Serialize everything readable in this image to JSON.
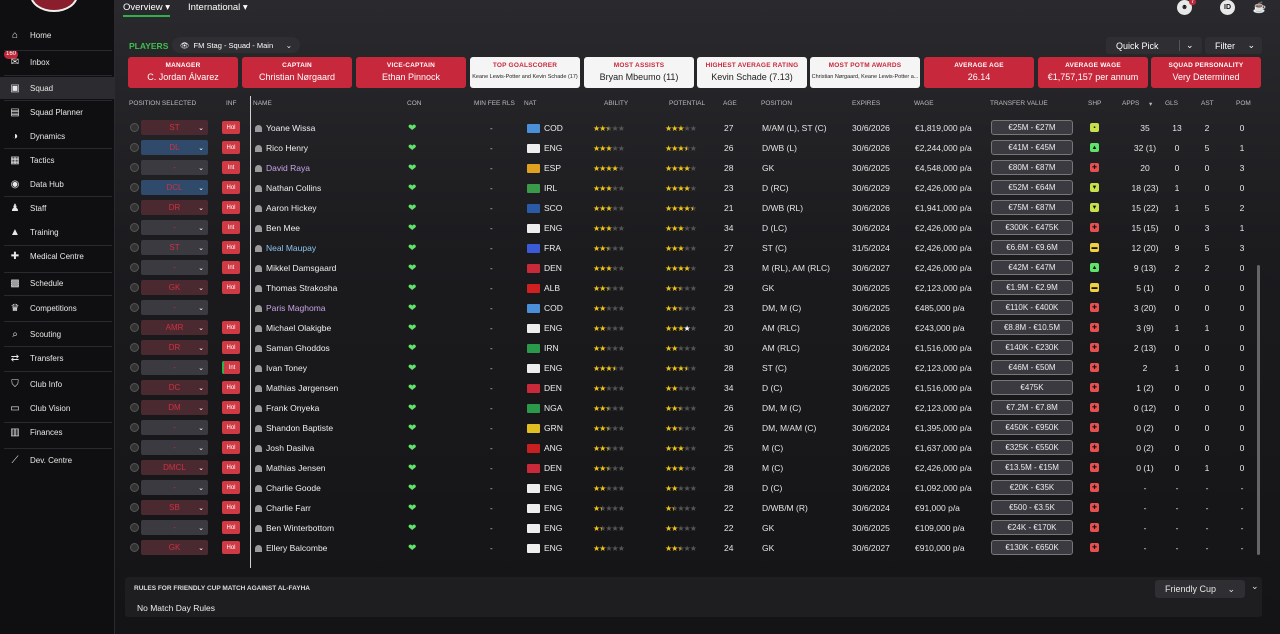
{
  "sidebar": {
    "inbox_badge": "160",
    "items": [
      {
        "label": "Home",
        "icon": "home-icon",
        "glyph": "⌂"
      },
      {
        "label": "Inbox",
        "icon": "inbox-icon",
        "glyph": "✉"
      },
      {
        "label": "Squad",
        "icon": "squad-icon",
        "glyph": "▣"
      },
      {
        "label": "Squad Planner",
        "icon": "squad-planner-icon",
        "glyph": "▤"
      },
      {
        "label": "Dynamics",
        "icon": "dynamics-icon",
        "glyph": "◑"
      },
      {
        "label": "Tactics",
        "icon": "tactics-icon",
        "glyph": "▦"
      },
      {
        "label": "Data Hub",
        "icon": "data-hub-icon",
        "glyph": "◉"
      },
      {
        "label": "Staff",
        "icon": "staff-icon",
        "glyph": "♟"
      },
      {
        "label": "Training",
        "icon": "training-icon",
        "glyph": "▲"
      },
      {
        "label": "Medical Centre",
        "icon": "medical-centre-icon",
        "glyph": "✚"
      },
      {
        "label": "Schedule",
        "icon": "schedule-icon",
        "glyph": "▩"
      },
      {
        "label": "Competitions",
        "icon": "competitions-icon",
        "glyph": "♛"
      },
      {
        "label": "Scouting",
        "icon": "scouting-icon",
        "glyph": "⌕"
      },
      {
        "label": "Transfers",
        "icon": "transfers-icon",
        "glyph": "⇄"
      },
      {
        "label": "Club Info",
        "icon": "club-info-icon",
        "glyph": "⛉"
      },
      {
        "label": "Club Vision",
        "icon": "club-vision-icon",
        "glyph": "▭"
      },
      {
        "label": "Finances",
        "icon": "finances-icon",
        "glyph": "▥"
      },
      {
        "label": "Dev. Centre",
        "icon": "dev-centre-icon",
        "glyph": "⟋"
      }
    ]
  },
  "topbar": {
    "tabs": [
      "Overview",
      "International"
    ],
    "notification_count": "7",
    "id_label": "ID"
  },
  "header": {
    "players_label": "PLAYERS",
    "view_select": "FM Stag - Squad - Main",
    "quick_pick": "Quick Pick",
    "filter": "Filter"
  },
  "cards": [
    {
      "title": "MANAGER",
      "value": "C. Jordan Álvarez",
      "style": "red"
    },
    {
      "title": "CAPTAIN",
      "value": "Christian Nørgaard",
      "style": "red"
    },
    {
      "title": "VICE-CAPTAIN",
      "value": "Ethan Pinnock",
      "style": "red"
    },
    {
      "title": "TOP GOALSCORER",
      "value": "Keane Lewis-Potter and Kevin Schade (17)",
      "style": "white",
      "small": true
    },
    {
      "title": "MOST ASSISTS",
      "value": "Bryan Mbeumo (11)",
      "style": "white"
    },
    {
      "title": "HIGHEST AVERAGE RATING",
      "value": "Kevin Schade (7.13)",
      "style": "white"
    },
    {
      "title": "MOST POTM AWARDS",
      "value": "Christian Nørgaard, Keane Lewis-Potter a...",
      "style": "white",
      "small": true
    },
    {
      "title": "AVERAGE AGE",
      "value": "26.14",
      "style": "red"
    },
    {
      "title": "AVERAGE WAGE",
      "value": "€1,757,157 per annum",
      "style": "red"
    },
    {
      "title": "SQUAD PERSONALITY",
      "value": "Very Determined",
      "style": "red"
    }
  ],
  "columns": [
    "POSITION SELECTED",
    "INF",
    "NAME",
    "CON",
    "MIN FEE RLS",
    "NAT",
    "ABILITY",
    "POTENTIAL",
    "AGE",
    "POSITION",
    "EXPIRES",
    "WAGE",
    "TRANSFER VALUE",
    "SHP",
    "APPS",
    "GLS",
    "AST",
    "POM"
  ],
  "players": [
    {
      "sel": "ST",
      "selStyle": "red",
      "inf": "Hol",
      "name": "Yoane Wissa",
      "nameStyle": "",
      "minfee": "-",
      "nat": "COD",
      "flag": "#4a8fd8",
      "ab": 2.5,
      "pot": 3,
      "age": "27",
      "pos": "M/AM (L), ST (C)",
      "exp": "30/6/2026",
      "wage": "€1,819,000 p/a",
      "tv": "€25M - €27M",
      "shp": "#c8e04a",
      "shpG": "▪",
      "apps": "35",
      "gls": "13",
      "ast": "2",
      "pom": "0"
    },
    {
      "sel": "DL",
      "selStyle": "blue",
      "inf": "Hol",
      "name": "Rico Henry",
      "nameStyle": "",
      "minfee": "-",
      "nat": "ENG",
      "flag": "#eee",
      "ab": 3,
      "pot": 3.5,
      "age": "26",
      "pos": "D/WB (L)",
      "exp": "30/6/2026",
      "wage": "€2,244,000 p/a",
      "tv": "€41M - €45M",
      "shp": "#5fe36a",
      "shpG": "▲",
      "apps": "32 (1)",
      "gls": "0",
      "ast": "5",
      "pom": "1"
    },
    {
      "sel": "-",
      "selStyle": "",
      "inf": "Int",
      "name": "David Raya",
      "nameStyle": "purple",
      "minfee": "-",
      "nat": "ESP",
      "flag": "#e0a020",
      "ab": 4,
      "pot": 4,
      "age": "28",
      "pos": "GK",
      "exp": "30/6/2025",
      "wage": "€4,548,000 p/a",
      "tv": "€80M - €87M",
      "shp": "#e85050",
      "shpG": "✚",
      "apps": "20",
      "gls": "0",
      "ast": "0",
      "pom": "3"
    },
    {
      "sel": "DCL",
      "selStyle": "blue",
      "inf": "Hol",
      "name": "Nathan Collins",
      "nameStyle": "",
      "minfee": "-",
      "nat": "IRL",
      "flag": "#3a9a4a",
      "ab": 3,
      "pot": 4,
      "age": "23",
      "pos": "D (RC)",
      "exp": "30/6/2029",
      "wage": "€2,426,000 p/a",
      "tv": "€52M - €64M",
      "shp": "#c8e04a",
      "shpG": "▼",
      "apps": "18 (23)",
      "gls": "1",
      "ast": "0",
      "pom": "0"
    },
    {
      "sel": "DR",
      "selStyle": "red",
      "inf": "Hol",
      "name": "Aaron Hickey",
      "nameStyle": "",
      "minfee": "-",
      "nat": "SCO",
      "flag": "#2a5aa8",
      "ab": 3,
      "pot": 4.5,
      "age": "21",
      "pos": "D/WB (RL)",
      "exp": "30/6/2026",
      "wage": "€1,941,000 p/a",
      "tv": "€75M - €87M",
      "shp": "#c8e04a",
      "shpG": "▼",
      "apps": "15 (22)",
      "gls": "1",
      "ast": "5",
      "pom": "2"
    },
    {
      "sel": "-",
      "selStyle": "",
      "inf": "Int",
      "name": "Ben Mee",
      "nameStyle": "",
      "minfee": "-",
      "nat": "ENG",
      "flag": "#eee",
      "ab": 3,
      "pot": 3,
      "age": "34",
      "pos": "D (LC)",
      "exp": "30/6/2024",
      "wage": "€2,426,000 p/a",
      "tv": "€300K - €475K",
      "shp": "#e85050",
      "shpG": "✚",
      "apps": "15 (15)",
      "gls": "0",
      "ast": "3",
      "pom": "1"
    },
    {
      "sel": "ST",
      "selStyle": "",
      "inf": "Hol",
      "name": "Neal Maupay",
      "nameStyle": "blue",
      "minfee": "-",
      "nat": "FRA",
      "flag": "#3a5ad8",
      "ab": 2.5,
      "pot": 3,
      "age": "27",
      "pos": "ST (C)",
      "exp": "31/5/2024",
      "wage": "€2,426,000 p/a",
      "tv": "€6.6M - €9.6M",
      "shp": "#f0d040",
      "shpG": "▬",
      "apps": "12 (20)",
      "gls": "9",
      "ast": "5",
      "pom": "3"
    },
    {
      "sel": "-",
      "selStyle": "",
      "inf": "Int",
      "name": "Mikkel Damsgaard",
      "nameStyle": "",
      "minfee": "-",
      "nat": "DEN",
      "flag": "#c82a3a",
      "ab": 3,
      "pot": 4,
      "age": "23",
      "pos": "M (RL), AM (RLC)",
      "exp": "30/6/2027",
      "wage": "€2,426,000 p/a",
      "tv": "€42M - €47M",
      "shp": "#5fe36a",
      "shpG": "▲",
      "apps": "9 (13)",
      "gls": "2",
      "ast": "2",
      "pom": "0"
    },
    {
      "sel": "GK",
      "selStyle": "red",
      "inf": "Hol",
      "name": "Thomas Strakosha",
      "nameStyle": "",
      "minfee": "-",
      "nat": "ALB",
      "flag": "#d02020",
      "ab": 2.5,
      "pot": 2.5,
      "age": "29",
      "pos": "GK",
      "exp": "30/6/2025",
      "wage": "€2,123,000 p/a",
      "tv": "€1.9M - €2.9M",
      "shp": "#f0d040",
      "shpG": "▬",
      "apps": "5 (1)",
      "gls": "0",
      "ast": "0",
      "pom": "0"
    },
    {
      "sel": "-",
      "selStyle": "",
      "inf": "",
      "name": "Paris Maghoma",
      "nameStyle": "purple",
      "minfee": "-",
      "nat": "COD",
      "flag": "#4a8fd8",
      "ab": 2,
      "pot": 2.5,
      "age": "23",
      "pos": "DM, M (C)",
      "exp": "30/6/2025",
      "wage": "€485,000 p/a",
      "tv": "€110K - €400K",
      "shp": "#e85050",
      "shpG": "✚",
      "apps": "3 (20)",
      "gls": "0",
      "ast": "0",
      "pom": "0"
    },
    {
      "sel": "AMR",
      "selStyle": "red",
      "inf": "Hol",
      "name": "Michael Olakigbe",
      "nameStyle": "",
      "minfee": "-",
      "nat": "ENG",
      "flag": "#eee",
      "ab": 2,
      "pot": 3,
      "potW": 1,
      "age": "20",
      "pos": "AM (RLC)",
      "exp": "30/6/2026",
      "wage": "€243,000 p/a",
      "tv": "€8.8M - €10.5M",
      "shp": "#e85050",
      "shpG": "✚",
      "apps": "3 (9)",
      "gls": "1",
      "ast": "1",
      "pom": "0"
    },
    {
      "sel": "DR",
      "selStyle": "red",
      "inf": "Hol",
      "name": "Saman Ghoddos",
      "nameStyle": "",
      "minfee": "-",
      "nat": "IRN",
      "flag": "#2a9a4a",
      "ab": 2,
      "pot": 2,
      "age": "30",
      "pos": "AM (RLC)",
      "exp": "30/6/2024",
      "wage": "€1,516,000 p/a",
      "tv": "€140K - €230K",
      "shp": "#e85050",
      "shpG": "✚",
      "apps": "2 (13)",
      "gls": "0",
      "ast": "0",
      "pom": "0"
    },
    {
      "sel": "-",
      "selStyle": "",
      "inf": "Int",
      "name": "Ivan Toney",
      "nameStyle": "",
      "minfee": "-",
      "nat": "ENG",
      "flag": "#eee",
      "ab": 3.5,
      "pot": 3.5,
      "age": "28",
      "pos": "ST (C)",
      "exp": "30/6/2025",
      "wage": "€2,123,000 p/a",
      "tv": "€46M - €50M",
      "shp": "#e85050",
      "shpG": "✚",
      "apps": "2",
      "gls": "1",
      "ast": "0",
      "pom": "0"
    },
    {
      "sel": "DC",
      "selStyle": "red",
      "inf": "Hol",
      "name": "Mathias Jørgensen",
      "nameStyle": "",
      "minfee": "-",
      "nat": "DEN",
      "flag": "#c82a3a",
      "ab": 2,
      "pot": 2,
      "age": "34",
      "pos": "D (C)",
      "exp": "30/6/2025",
      "wage": "€1,516,000 p/a",
      "tv": "€475K",
      "shp": "#e85050",
      "shpG": "✚",
      "apps": "1 (2)",
      "gls": "0",
      "ast": "0",
      "pom": "0"
    },
    {
      "sel": "DM",
      "selStyle": "red",
      "inf": "Hol",
      "name": "Frank Onyeka",
      "nameStyle": "",
      "minfee": "-",
      "nat": "NGA",
      "flag": "#2a9a4a",
      "ab": 2.5,
      "pot": 2.5,
      "age": "26",
      "pos": "DM, M (C)",
      "exp": "30/6/2027",
      "wage": "€2,123,000 p/a",
      "tv": "€7.2M - €7.8M",
      "shp": "#e85050",
      "shpG": "✚",
      "apps": "0 (12)",
      "gls": "0",
      "ast": "0",
      "pom": "0"
    },
    {
      "sel": "-",
      "selStyle": "",
      "inf": "Hol",
      "name": "Shandon Baptiste",
      "nameStyle": "",
      "minfee": "-",
      "nat": "GRN",
      "flag": "#e0c020",
      "ab": 2.5,
      "pot": 2.5,
      "age": "26",
      "pos": "DM, M/AM (C)",
      "exp": "30/6/2024",
      "wage": "€1,395,000 p/a",
      "tv": "€450K - €950K",
      "shp": "#e85050",
      "shpG": "✚",
      "apps": "0 (2)",
      "gls": "0",
      "ast": "0",
      "pom": "0"
    },
    {
      "sel": "-",
      "selStyle": "",
      "inf": "Hol",
      "name": "Josh Dasilva",
      "nameStyle": "",
      "minfee": "-",
      "nat": "ANG",
      "flag": "#c82020",
      "ab": 2.5,
      "pot": 3,
      "age": "25",
      "pos": "M (C)",
      "exp": "30/6/2025",
      "wage": "€1,637,000 p/a",
      "tv": "€325K - €550K",
      "shp": "#e85050",
      "shpG": "✚",
      "apps": "0 (2)",
      "gls": "0",
      "ast": "0",
      "pom": "0"
    },
    {
      "sel": "DMCL",
      "selStyle": "red",
      "inf": "Hol",
      "name": "Mathias Jensen",
      "nameStyle": "",
      "minfee": "-",
      "nat": "DEN",
      "flag": "#c82a3a",
      "ab": 2.5,
      "pot": 3,
      "age": "28",
      "pos": "M (C)",
      "exp": "30/6/2026",
      "wage": "€2,426,000 p/a",
      "tv": "€13.5M - €15M",
      "shp": "#e85050",
      "shpG": "✚",
      "apps": "0 (1)",
      "gls": "0",
      "ast": "1",
      "pom": "0"
    },
    {
      "sel": "-",
      "selStyle": "",
      "inf": "Hol",
      "name": "Charlie Goode",
      "nameStyle": "",
      "minfee": "-",
      "nat": "ENG",
      "flag": "#eee",
      "ab": 2,
      "pot": 2,
      "age": "28",
      "pos": "D (C)",
      "exp": "30/6/2024",
      "wage": "€1,092,000 p/a",
      "tv": "€20K - €35K",
      "shp": "#e85050",
      "shpG": "✚",
      "apps": "-",
      "gls": "-",
      "ast": "-",
      "pom": "-"
    },
    {
      "sel": "SB",
      "selStyle": "red",
      "inf": "Hol",
      "name": "Charlie Farr",
      "nameStyle": "",
      "minfee": "-",
      "nat": "ENG",
      "flag": "#eee",
      "ab": 1.5,
      "pot": 1.5,
      "age": "22",
      "pos": "D/WB/M (R)",
      "exp": "30/6/2024",
      "wage": "€91,000 p/a",
      "tv": "€500 - €3.5K",
      "shp": "#e85050",
      "shpG": "✚",
      "apps": "-",
      "gls": "-",
      "ast": "-",
      "pom": "-"
    },
    {
      "sel": "-",
      "selStyle": "",
      "inf": "Hol",
      "name": "Ben Winterbottom",
      "nameStyle": "",
      "minfee": "-",
      "nat": "ENG",
      "flag": "#eee",
      "ab": 1.5,
      "pot": 2,
      "age": "22",
      "pos": "GK",
      "exp": "30/6/2025",
      "wage": "€109,000 p/a",
      "tv": "€24K - €170K",
      "shp": "#e85050",
      "shpG": "✚",
      "apps": "-",
      "gls": "-",
      "ast": "-",
      "pom": "-"
    },
    {
      "sel": "GK",
      "selStyle": "red",
      "inf": "Hol",
      "name": "Ellery Balcombe",
      "nameStyle": "",
      "minfee": "-",
      "nat": "ENG",
      "flag": "#eee",
      "ab": 2,
      "pot": 2.5,
      "age": "24",
      "pos": "GK",
      "exp": "30/6/2027",
      "wage": "€910,000 p/a",
      "tv": "€130K - €650K",
      "shp": "#e85050",
      "shpG": "✚",
      "apps": "-",
      "gls": "-",
      "ast": "-",
      "pom": "-"
    }
  ],
  "bottom": {
    "title": "RULES FOR FRIENDLY CUP MATCH AGAINST AL-FAYHA",
    "rules": "No Match Day Rules",
    "competition": "Friendly Cup"
  }
}
